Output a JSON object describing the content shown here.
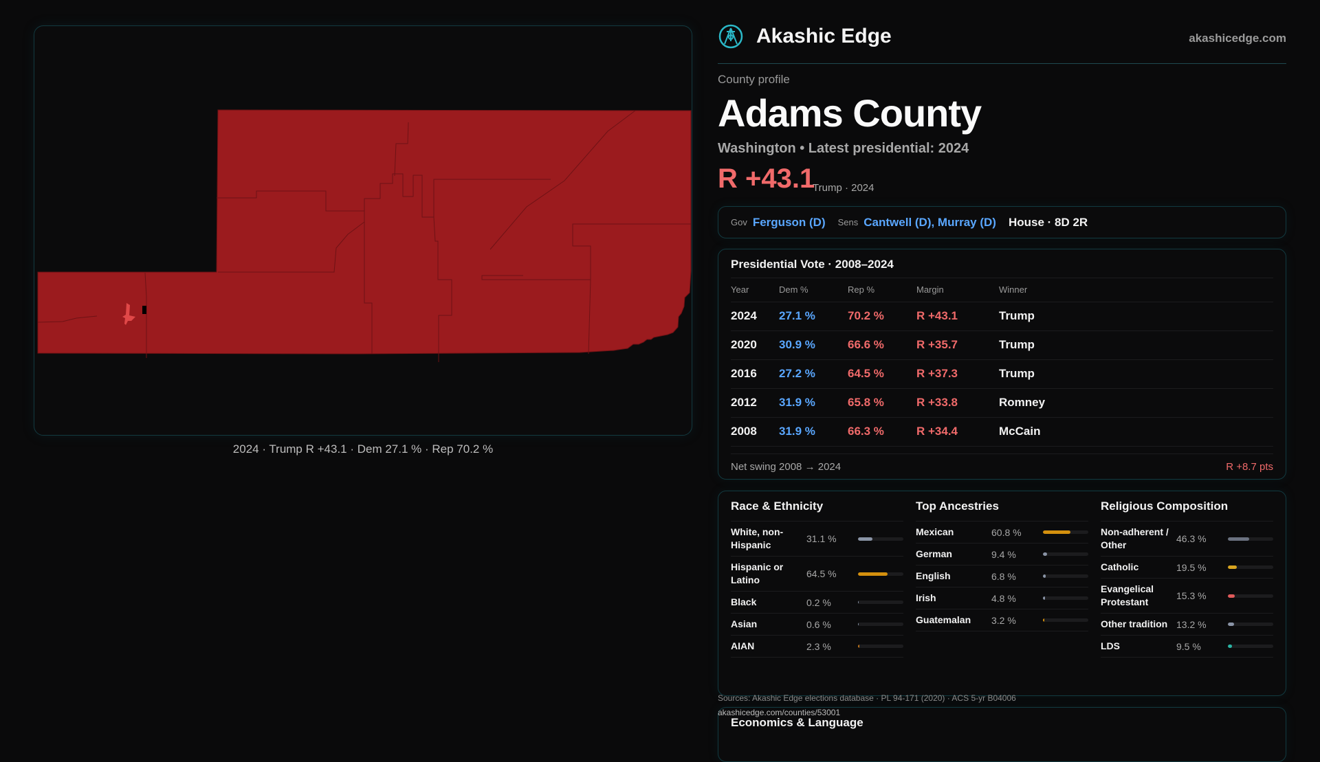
{
  "map": {
    "caption": "2024 · Trump R +43.1 · Dem 27.1 % · Rep 70.2 %",
    "fill_color": "#9b1b1e",
    "highlight_color": "#e04848"
  },
  "header": {
    "brand": "Akashic Edge",
    "site": "akashicedge.com",
    "logo_icon": "compass-seal-icon"
  },
  "profile": {
    "kicker": "County profile",
    "title": "Adams County",
    "subtitle": "Washington • Latest presidential: 2024",
    "margin": "R +43.1",
    "margin_sub": "Trump · 2024"
  },
  "officials": {
    "gov_label": "Gov",
    "gov": "Ferguson (D)",
    "sens_label": "Sens",
    "sens": "Cantwell (D), Murray (D)",
    "house": "House · 8D 2R"
  },
  "presidential": {
    "title": "Presidential Vote · 2008–2024",
    "headers": [
      "Year",
      "Dem %",
      "Rep %",
      "Margin",
      "Winner"
    ],
    "rows": [
      [
        "2024",
        "27.1 %",
        "70.2 %",
        "R +43.1",
        "Trump"
      ],
      [
        "2020",
        "30.9 %",
        "66.6 %",
        "R +35.7",
        "Trump"
      ],
      [
        "2016",
        "27.2 %",
        "64.5 %",
        "R +37.3",
        "Trump"
      ],
      [
        "2012",
        "31.9 %",
        "65.8 %",
        "R +33.8",
        "Romney"
      ],
      [
        "2008",
        "31.9 %",
        "66.3 %",
        "R +34.4",
        "McCain"
      ]
    ],
    "swing_label": "Net swing 2008 → 2024",
    "swing_value": "R +8.7 pts"
  },
  "demographics": [
    {
      "title": "Race & Ethnicity",
      "items": [
        {
          "label": "White, non-Hispanic",
          "value": "31.1 %",
          "pct": 31.1,
          "color": "#8a94a6"
        },
        {
          "label": "Hispanic or Latino",
          "value": "64.5 %",
          "pct": 64.5,
          "color": "#d4900e"
        },
        {
          "label": "Black",
          "value": "0.2 %",
          "pct": 0.2,
          "color": "#8a94a6"
        },
        {
          "label": "Asian",
          "value": "0.6 %",
          "pct": 0.6,
          "color": "#8a94a6"
        },
        {
          "label": "AIAN",
          "value": "2.3 %",
          "pct": 2.3,
          "color": "#c0741a"
        }
      ]
    },
    {
      "title": "Top Ancestries",
      "items": [
        {
          "label": "Mexican",
          "value": "60.8 %",
          "pct": 60.8,
          "color": "#d4900e"
        },
        {
          "label": "German",
          "value": "9.4 %",
          "pct": 9.4,
          "color": "#8a94a6"
        },
        {
          "label": "English",
          "value": "6.8 %",
          "pct": 6.8,
          "color": "#8a94a6"
        },
        {
          "label": "Irish",
          "value": "4.8 %",
          "pct": 4.8,
          "color": "#8a94a6"
        },
        {
          "label": "Guatemalan",
          "value": "3.2 %",
          "pct": 3.2,
          "color": "#d4900e"
        }
      ]
    },
    {
      "title": "Religious Composition",
      "items": [
        {
          "label": "Non-adherent / Other",
          "value": "46.3 %",
          "pct": 46.3,
          "color": "#6b7280"
        },
        {
          "label": "Catholic",
          "value": "19.5 %",
          "pct": 19.5,
          "color": "#d9a520"
        },
        {
          "label": "Evangelical Protestant",
          "value": "15.3 %",
          "pct": 15.3,
          "color": "#e05a5a"
        },
        {
          "label": "Other tradition",
          "value": "13.2 %",
          "pct": 13.2,
          "color": "#8a94a6"
        },
        {
          "label": "LDS",
          "value": "9.5 %",
          "pct": 9.5,
          "color": "#2ab5a5"
        }
      ]
    }
  ],
  "sources": {
    "line1": "Sources: Akashic Edge elections database · PL 94-171 (2020) · ACS 5-yr B04006",
    "line2": "akashicedge.com/counties/53001"
  },
  "econ": {
    "title": "Economics & Language"
  }
}
